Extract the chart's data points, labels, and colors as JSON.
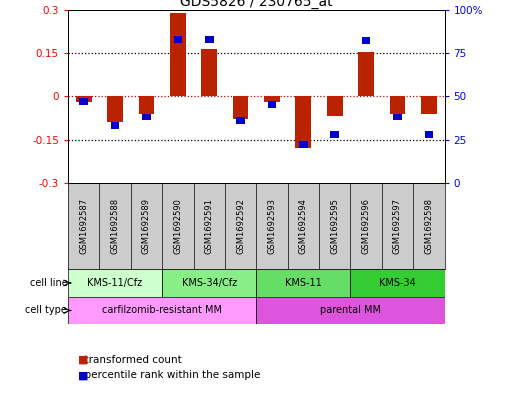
{
  "title": "GDS5826 / 230765_at",
  "samples": [
    "GSM1692587",
    "GSM1692588",
    "GSM1692589",
    "GSM1692590",
    "GSM1692591",
    "GSM1692592",
    "GSM1692593",
    "GSM1692594",
    "GSM1692595",
    "GSM1692596",
    "GSM1692597",
    "GSM1692598"
  ],
  "red_bars": [
    -0.02,
    -0.09,
    -0.06,
    0.29,
    0.165,
    -0.08,
    -0.02,
    -0.18,
    -0.07,
    0.155,
    -0.06,
    -0.06
  ],
  "blue_bars_pct": [
    47,
    33,
    38,
    83,
    83,
    36,
    45,
    22,
    28,
    82,
    38,
    28
  ],
  "ylim_left": [
    -0.3,
    0.3
  ],
  "ylim_right": [
    0,
    100
  ],
  "yticks_left": [
    -0.3,
    -0.15,
    0.0,
    0.15,
    0.3
  ],
  "yticks_right": [
    0,
    25,
    50,
    75,
    100
  ],
  "cell_line_groups": [
    {
      "label": "KMS-11/Cfz",
      "start": 0,
      "end": 3,
      "color": "#ccffcc"
    },
    {
      "label": "KMS-34/Cfz",
      "start": 3,
      "end": 6,
      "color": "#66ff66"
    },
    {
      "label": "KMS-11",
      "start": 6,
      "end": 9,
      "color": "#66ff66"
    },
    {
      "label": "KMS-34",
      "start": 9,
      "end": 12,
      "color": "#33ee33"
    }
  ],
  "cell_type_groups": [
    {
      "label": "carfilzomib-resistant MM",
      "start": 0,
      "end": 6,
      "color": "#ff88ff"
    },
    {
      "label": "parental MM",
      "start": 6,
      "end": 12,
      "color": "#ee55ee"
    }
  ],
  "red_color": "#bb2200",
  "blue_color": "#0000cc",
  "bar_width": 0.5,
  "hline_color": "#cc0000",
  "bg_color": "white"
}
